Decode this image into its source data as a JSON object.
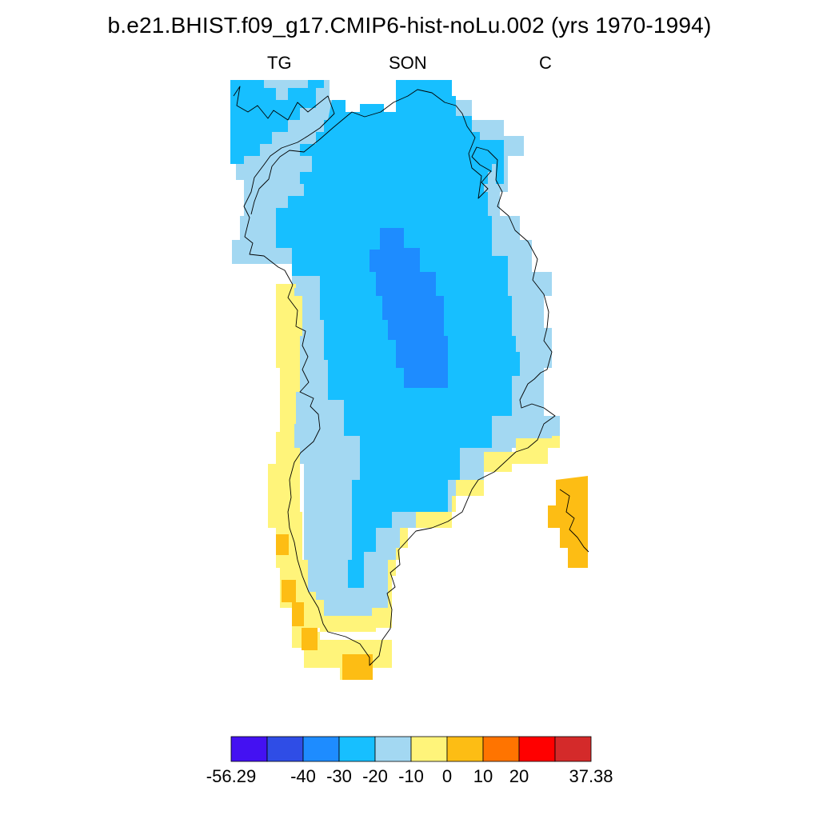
{
  "title": "b.e21.BHIST.f09_g17.CMIP6-hist-noLu.002 (yrs 1970-1994)",
  "subtitle": {
    "left": "TG",
    "center": "SON",
    "right": "C"
  },
  "colors": {
    "c1": "#4411f2",
    "c2": "#2f4de6",
    "c3": "#1e8cff",
    "c4": "#17bfff",
    "c5": "#a3d8f2",
    "c6": "#fff47a",
    "c7": "#fdbd14",
    "c8": "#ff7400",
    "c9": "#ff0000",
    "c10": "#d42a2a"
  },
  "colorbar": {
    "bins": [
      "c1",
      "c2",
      "c3",
      "c4",
      "c5",
      "c6",
      "c7",
      "c8",
      "c9",
      "c10"
    ],
    "labels": [
      "-56.29",
      "-40",
      "-30",
      "-20",
      "-10",
      "0",
      "10",
      "20",
      "37.38"
    ]
  }
}
